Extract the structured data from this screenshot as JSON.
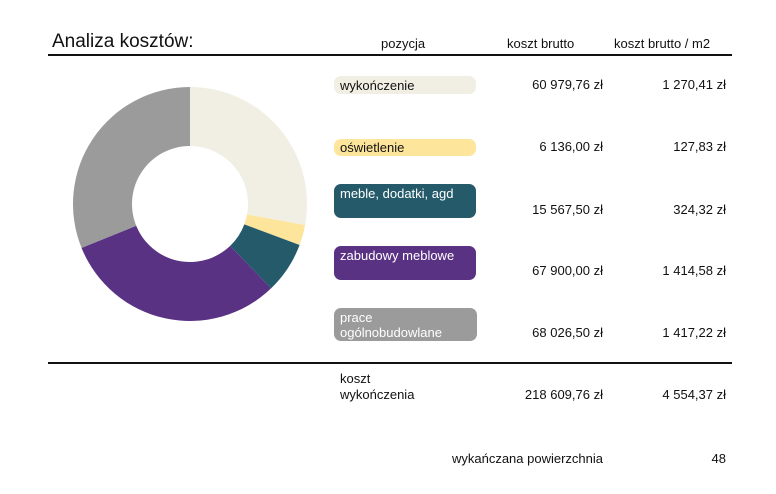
{
  "header": {
    "title": "Analiza kosztów:",
    "col_position": "pozycja",
    "col_gross": "koszt brutto",
    "col_per_m2": "koszt brutto / m2"
  },
  "colors": {
    "wykonczenie": "#f1efe4",
    "oswietlenie": "#fde59b",
    "meble": "#245a6a",
    "zabudowy": "#5a3284",
    "prace": "#9b9b9b"
  },
  "rows": [
    {
      "label": "wykończenie",
      "gross": "60 979,76 zł",
      "per_m2": "1 270,41 zł"
    },
    {
      "label": "oświetlenie",
      "gross": "6 136,00 zł",
      "per_m2": "127,83 zł"
    },
    {
      "label": "meble, dodatki, agd",
      "gross": "15 567,50 zł",
      "per_m2": "324,32 zł"
    },
    {
      "label": "zabudowy meblowe",
      "gross": "67 900,00 zł",
      "per_m2": "1 414,58 zł"
    },
    {
      "label": "prace ogólnobudowlane",
      "gross": "68 026,50 zł",
      "per_m2": "1 417,22 zł"
    }
  ],
  "total": {
    "label": "koszt wykończenia",
    "gross": "218 609,76 zł",
    "per_m2": "4 554,37 zł"
  },
  "area": {
    "label": "wykańczana powierzchnia",
    "value": "48"
  },
  "chart_data": {
    "type": "pie",
    "donut": true,
    "categories": [
      "wykończenie",
      "oświetlenie",
      "meble, dodatki, agd",
      "zabudowy meblowe",
      "prace ogólnobudowlane"
    ],
    "values": [
      60979.76,
      6136.0,
      15567.5,
      67900.0,
      68026.5
    ],
    "colors": [
      "#f1efe4",
      "#fde59b",
      "#245a6a",
      "#5a3284",
      "#9b9b9b"
    ]
  }
}
